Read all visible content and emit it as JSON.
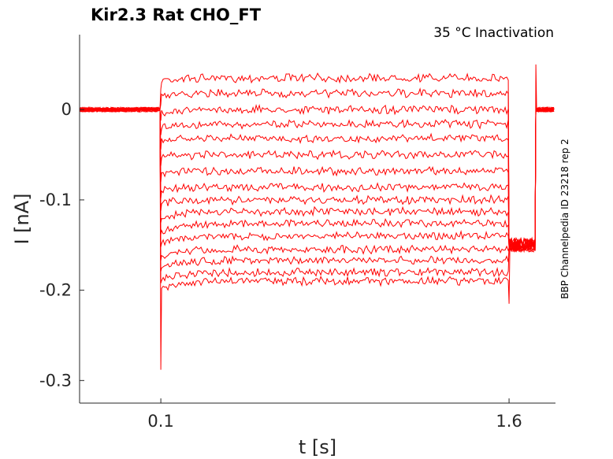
{
  "chart_data": {
    "type": "line",
    "title": "Kir2.3  Rat  CHO_FT",
    "annotation": "35 °C  Inactivation",
    "side_label": "BBP Channelpedia ID 23218 rep 2",
    "xlabel": "t [s]",
    "ylabel": "I [nA]",
    "xlim": [
      -0.25,
      1.8
    ],
    "ylim": [
      -0.325,
      0.083
    ],
    "x_ticks": [
      0.1,
      1.6
    ],
    "x_tick_labels": [
      "0.1",
      "1.6"
    ],
    "y_ticks": [
      0,
      -0.1,
      -0.2,
      -0.3
    ],
    "y_tick_labels": [
      "0",
      "-0.1",
      "-0.2",
      "-0.3"
    ],
    "grid": false,
    "line_color": "#ff0000",
    "pulse_start": 0.1,
    "pulse_end": 1.6,
    "holding_current": 0.0,
    "tail_current": -0.15,
    "step_currents": [
      0.035,
      0.018,
      0.0,
      -0.016,
      -0.032,
      -0.05,
      -0.068,
      -0.086,
      -0.1,
      -0.113,
      -0.126,
      -0.14,
      -0.155,
      -0.167,
      -0.18,
      -0.19
    ],
    "onset_transient_min": -0.288,
    "offset_transient_min": -0.215,
    "tail_spike_max": 0.05
  }
}
